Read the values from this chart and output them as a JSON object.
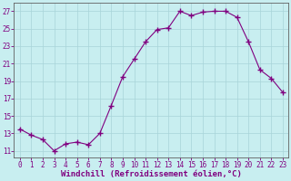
{
  "x": [
    0,
    1,
    2,
    3,
    4,
    5,
    6,
    7,
    8,
    9,
    10,
    11,
    12,
    13,
    14,
    15,
    16,
    17,
    18,
    19,
    20,
    21,
    22,
    23
  ],
  "y": [
    13.5,
    12.8,
    12.3,
    11.0,
    11.8,
    12.0,
    11.7,
    13.0,
    16.2,
    19.5,
    21.5,
    23.5,
    24.9,
    25.1,
    27.0,
    26.5,
    26.9,
    27.0,
    27.0,
    26.3,
    23.5,
    20.3,
    19.3,
    17.7
  ],
  "line_color": "#800080",
  "marker": "+",
  "marker_size": 4,
  "bg_color": "#c8eef0",
  "grid_color": "#a8d4d8",
  "xlabel": "Windchill (Refroidissement éolien,°C)",
  "xlabel_color": "#800080",
  "xlabel_fontsize": 6.5,
  "yticks": [
    11,
    13,
    15,
    17,
    19,
    21,
    23,
    25,
    27
  ],
  "xticks": [
    0,
    1,
    2,
    3,
    4,
    5,
    6,
    7,
    8,
    9,
    10,
    11,
    12,
    13,
    14,
    15,
    16,
    17,
    18,
    19,
    20,
    21,
    22,
    23
  ],
  "ylim": [
    10.2,
    28.0
  ],
  "xlim": [
    -0.5,
    23.5
  ],
  "tick_color": "#800080",
  "tick_fontsize": 5.5,
  "axis_color": "#800080",
  "spine_color": "#606060"
}
